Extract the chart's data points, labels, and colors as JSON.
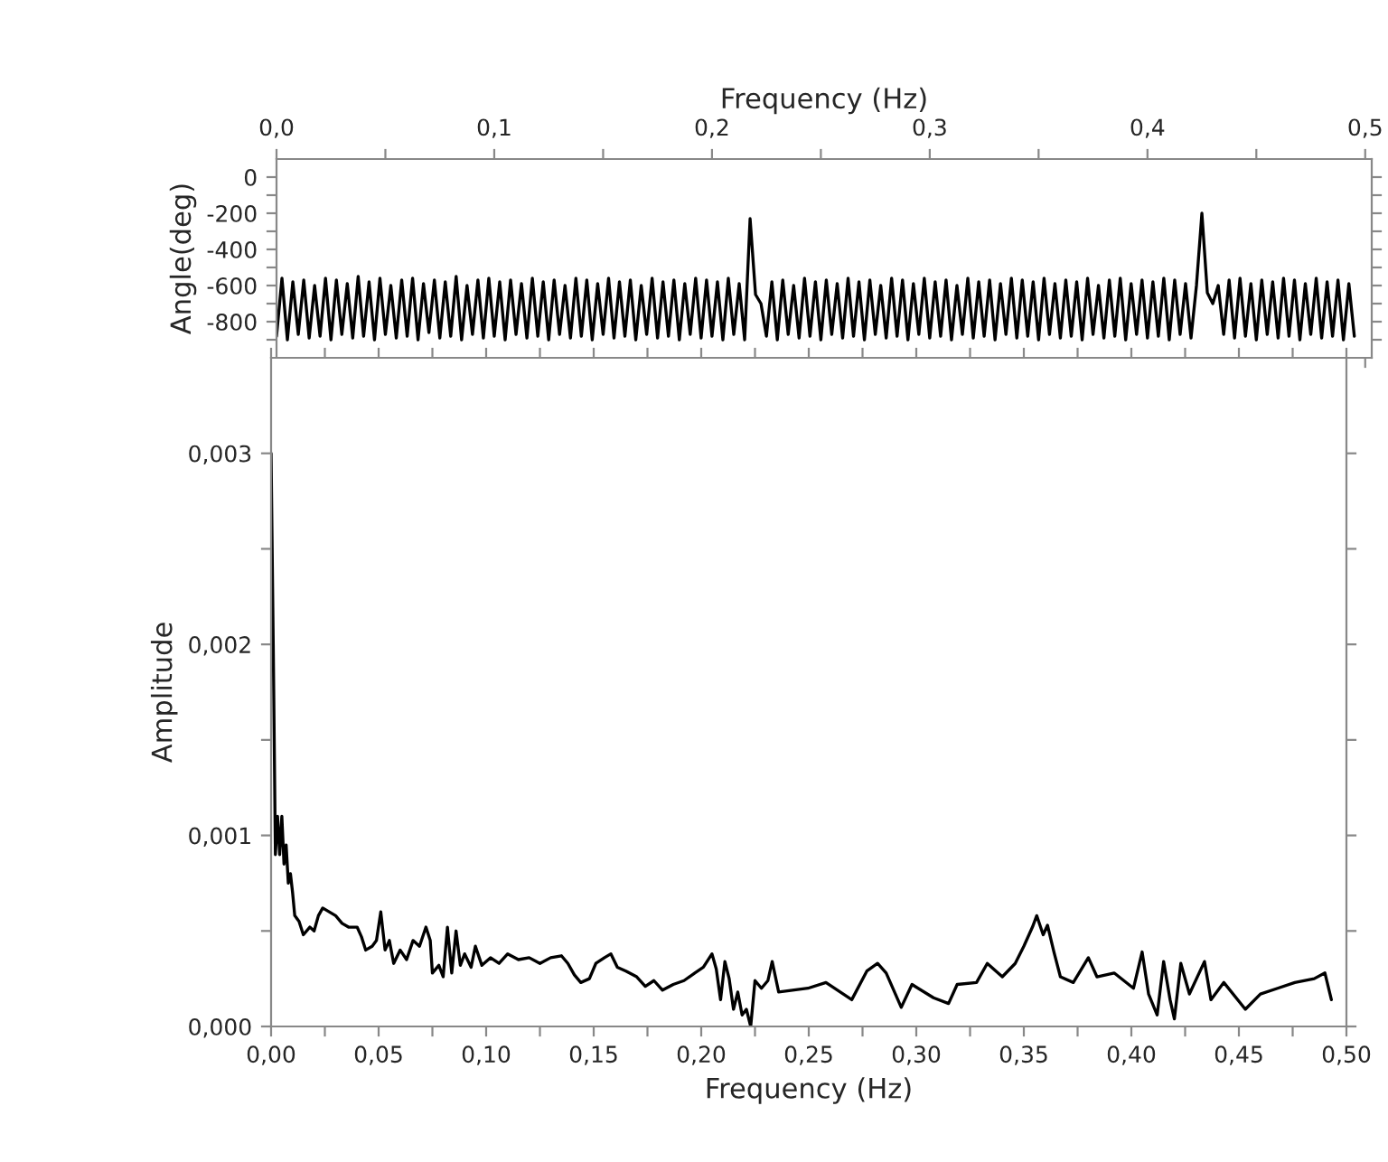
{
  "chart_data": [
    {
      "type": "line",
      "xlabel": "Frequency (Hz)",
      "ylabel": "Angle(deg)",
      "xlim": [
        0,
        0.503
      ],
      "ylim": [
        -1000,
        100
      ],
      "xticks": [
        {
          "value": 0,
          "label": "0,0"
        },
        {
          "value": 0.05,
          "label": null
        },
        {
          "value": 0.1,
          "label": "0,1"
        },
        {
          "value": 0.15,
          "label": null
        },
        {
          "value": 0.2,
          "label": "0,2"
        },
        {
          "value": 0.25,
          "label": null
        },
        {
          "value": 0.3,
          "label": "0,3"
        },
        {
          "value": 0.35,
          "label": null
        },
        {
          "value": 0.4,
          "label": "0,4"
        },
        {
          "value": 0.45,
          "label": null
        },
        {
          "value": 0.5,
          "label": "0,5"
        }
      ],
      "yticks": [
        0,
        {
          "value": -100,
          "label": null
        },
        -200,
        {
          "value": -300,
          "label": null
        },
        -400,
        {
          "value": -500,
          "label": null
        },
        -600,
        {
          "value": -700,
          "label": null
        },
        -800,
        {
          "value": -900,
          "label": null
        }
      ],
      "grid": false,
      "marker": "none",
      "line_style": "solid",
      "series": [
        {
          "color": "#000000",
          "x": [
            0,
            0.0025,
            0.005,
            0.0075,
            0.01,
            0.0125,
            0.015,
            0.0175,
            0.02,
            0.0225,
            0.025,
            0.0275,
            0.03,
            0.0325,
            0.035,
            0.0375,
            0.04,
            0.0425,
            0.045,
            0.0475,
            0.05,
            0.0525,
            0.055,
            0.0575,
            0.06,
            0.0625,
            0.065,
            0.0675,
            0.07,
            0.0725,
            0.075,
            0.0775,
            0.08,
            0.0825,
            0.085,
            0.0875,
            0.09,
            0.0925,
            0.095,
            0.0975,
            0.1,
            0.1025,
            0.105,
            0.1075,
            0.11,
            0.1125,
            0.115,
            0.1175,
            0.12,
            0.1225,
            0.125,
            0.1275,
            0.13,
            0.1325,
            0.135,
            0.1375,
            0.14,
            0.1425,
            0.145,
            0.1475,
            0.15,
            0.1525,
            0.155,
            0.1575,
            0.16,
            0.1625,
            0.165,
            0.1675,
            0.17,
            0.1725,
            0.175,
            0.1775,
            0.18,
            0.1825,
            0.185,
            0.1875,
            0.19,
            0.1925,
            0.195,
            0.1975,
            0.2,
            0.2025,
            0.205,
            0.2075,
            0.21,
            0.2125,
            0.215,
            0.2175,
            0.22,
            0.2225,
            0.225,
            0.2275,
            0.23,
            0.2325,
            0.235,
            0.2375,
            0.24,
            0.2425,
            0.245,
            0.2475,
            0.25,
            0.2525,
            0.255,
            0.2575,
            0.26,
            0.2625,
            0.265,
            0.2675,
            0.27,
            0.2725,
            0.275,
            0.2775,
            0.28,
            0.2825,
            0.285,
            0.2875,
            0.29,
            0.2925,
            0.295,
            0.2975,
            0.3,
            0.3025,
            0.305,
            0.3075,
            0.31,
            0.3125,
            0.315,
            0.3175,
            0.32,
            0.3225,
            0.325,
            0.3275,
            0.33,
            0.3325,
            0.335,
            0.3375,
            0.34,
            0.3425,
            0.345,
            0.3475,
            0.35,
            0.3525,
            0.355,
            0.3575,
            0.36,
            0.3625,
            0.365,
            0.3675,
            0.37,
            0.3725,
            0.375,
            0.3775,
            0.38,
            0.3825,
            0.385,
            0.3875,
            0.39,
            0.3925,
            0.395,
            0.3975,
            0.4,
            0.4025,
            0.405,
            0.4075,
            0.41,
            0.4125,
            0.415,
            0.4175,
            0.42,
            0.4225,
            0.425,
            0.4275,
            0.43,
            0.4325,
            0.435,
            0.4375,
            0.44,
            0.4425,
            0.445,
            0.4475,
            0.45,
            0.4525,
            0.455,
            0.4575,
            0.46,
            0.4625,
            0.465,
            0.4675,
            0.47,
            0.4725,
            0.475,
            0.4775,
            0.48,
            0.4825,
            0.485,
            0.4875,
            0.49,
            0.4925,
            0.495
          ],
          "values": [
            -880,
            -560,
            -900,
            -580,
            -870,
            -570,
            -890,
            -600,
            -880,
            -560,
            -900,
            -570,
            -870,
            -590,
            -890,
            -550,
            -880,
            -580,
            -900,
            -560,
            -870,
            -600,
            -890,
            -570,
            -880,
            -560,
            -900,
            -590,
            -860,
            -570,
            -890,
            -580,
            -880,
            -550,
            -900,
            -600,
            -870,
            -570,
            -890,
            -560,
            -880,
            -580,
            -900,
            -570,
            -870,
            -590,
            -890,
            -560,
            -880,
            -580,
            -900,
            -570,
            -870,
            -600,
            -890,
            -560,
            -880,
            -570,
            -900,
            -590,
            -870,
            -560,
            -890,
            -580,
            -880,
            -570,
            -900,
            -600,
            -870,
            -560,
            -890,
            -580,
            -880,
            -570,
            -900,
            -590,
            -870,
            -560,
            -890,
            -570,
            -880,
            -580,
            -900,
            -560,
            -870,
            -590,
            -900,
            -230,
            -650,
            -700,
            -880,
            -580,
            -900,
            -570,
            -870,
            -600,
            -890,
            -560,
            -880,
            -580,
            -900,
            -570,
            -870,
            -590,
            -890,
            -560,
            -880,
            -580,
            -900,
            -570,
            -870,
            -600,
            -890,
            -560,
            -880,
            -570,
            -900,
            -590,
            -870,
            -560,
            -890,
            -580,
            -880,
            -570,
            -900,
            -600,
            -870,
            -560,
            -890,
            -580,
            -880,
            -570,
            -900,
            -590,
            -870,
            -560,
            -890,
            -570,
            -880,
            -580,
            -900,
            -560,
            -870,
            -590,
            -890,
            -570,
            -880,
            -580,
            -900,
            -560,
            -870,
            -600,
            -890,
            -570,
            -880,
            -560,
            -900,
            -590,
            -870,
            -570,
            -890,
            -580,
            -880,
            -560,
            -900,
            -570,
            -870,
            -590,
            -890,
            -600,
            -200,
            -640,
            -700,
            -600,
            -870,
            -570,
            -890,
            -560,
            -880,
            -590,
            -900,
            -570,
            -870,
            -580,
            -890,
            -560,
            -880,
            -570,
            -900,
            -590,
            -870,
            -560,
            -890,
            -580,
            -880,
            -570,
            -900,
            -590,
            -880
          ]
        }
      ]
    },
    {
      "type": "line",
      "xlabel": "Frequency (Hz)",
      "ylabel": "Amplitude",
      "xlim": [
        0,
        0.5
      ],
      "ylim": [
        0,
        0.0035
      ],
      "xticks": [
        {
          "value": 0,
          "label": "0,00"
        },
        {
          "value": 0.025,
          "label": null
        },
        {
          "value": 0.05,
          "label": "0,05"
        },
        {
          "value": 0.075,
          "label": null
        },
        {
          "value": 0.1,
          "label": "0,10"
        },
        {
          "value": 0.125,
          "label": null
        },
        {
          "value": 0.15,
          "label": "0,15"
        },
        {
          "value": 0.175,
          "label": null
        },
        {
          "value": 0.2,
          "label": "0,20"
        },
        {
          "value": 0.225,
          "label": null
        },
        {
          "value": 0.25,
          "label": "0,25"
        },
        {
          "value": 0.275,
          "label": null
        },
        {
          "value": 0.3,
          "label": "0,30"
        },
        {
          "value": 0.325,
          "label": null
        },
        {
          "value": 0.35,
          "label": "0,35"
        },
        {
          "value": 0.375,
          "label": null
        },
        {
          "value": 0.4,
          "label": "0,40"
        },
        {
          "value": 0.425,
          "label": null
        },
        {
          "value": 0.45,
          "label": "0,45"
        },
        {
          "value": 0.475,
          "label": null
        },
        {
          "value": 0.5,
          "label": "0,50"
        }
      ],
      "yticks": [
        {
          "value": 0,
          "label": "0,000"
        },
        {
          "value": 0.0005,
          "label": null
        },
        {
          "value": 0.001,
          "label": "0,001"
        },
        {
          "value": 0.0015,
          "label": null
        },
        {
          "value": 0.002,
          "label": "0,002"
        },
        {
          "value": 0.0025,
          "label": null
        },
        {
          "value": 0.003,
          "label": "0,003"
        }
      ],
      "grid": false,
      "marker": "none",
      "line_style": "solid",
      "series": [
        {
          "color": "#000000",
          "x": [
            0,
            0.001,
            0.002,
            0.003,
            0.004,
            0.005,
            0.006,
            0.007,
            0.008,
            0.009,
            0.01,
            0.011,
            0.013,
            0.015,
            0.018,
            0.02,
            0.022,
            0.024,
            0.027,
            0.03,
            0.033,
            0.036,
            0.04,
            0.042,
            0.044,
            0.047,
            0.049,
            0.051,
            0.053,
            0.055,
            0.057,
            0.06,
            0.063,
            0.066,
            0.069,
            0.072,
            0.074,
            0.075,
            0.078,
            0.08,
            0.082,
            0.084,
            0.086,
            0.088,
            0.09,
            0.093,
            0.095,
            0.098,
            0.102,
            0.106,
            0.11,
            0.115,
            0.12,
            0.125,
            0.13,
            0.135,
            0.138,
            0.141,
            0.144,
            0.148,
            0.151,
            0.155,
            0.158,
            0.161,
            0.165,
            0.17,
            0.174,
            0.178,
            0.182,
            0.187,
            0.192,
            0.197,
            0.201,
            0.205,
            0.207,
            0.209,
            0.211,
            0.213,
            0.215,
            0.217,
            0.219,
            0.221,
            0.223,
            0.225,
            0.228,
            0.231,
            0.233,
            0.236,
            0.2496,
            0.258,
            0.27,
            0.277,
            0.282,
            0.286,
            0.293,
            0.298,
            0.308,
            0.315,
            0.319,
            0.328,
            0.333,
            0.34,
            0.346,
            0.35,
            0.354,
            0.356,
            0.359,
            0.361,
            0.364,
            0.367,
            0.373,
            0.38,
            0.384,
            0.392,
            0.401,
            0.405,
            0.408,
            0.412,
            0.415,
            0.418,
            0.42,
            0.423,
            0.427,
            0.434,
            0.437,
            0.443,
            0.453,
            0.46,
            0.468,
            0.476,
            0.485,
            0.49,
            0.493
          ],
          "values": [
            0.003,
            0.002,
            0.0009,
            0.0011,
            0.0009,
            0.0011,
            0.00085,
            0.00095,
            0.00075,
            0.0008,
            0.0007,
            0.00058,
            0.00055,
            0.00048,
            0.00052,
            0.0005,
            0.00058,
            0.00062,
            0.0006,
            0.00058,
            0.00054,
            0.00052,
            0.00052,
            0.00047,
            0.0004,
            0.00042,
            0.00045,
            0.0006,
            0.0004,
            0.00045,
            0.00033,
            0.0004,
            0.00035,
            0.00045,
            0.00042,
            0.00052,
            0.00045,
            0.00028,
            0.00032,
            0.00026,
            0.00052,
            0.00028,
            0.0005,
            0.00032,
            0.00038,
            0.00031,
            0.00042,
            0.00032,
            0.00036,
            0.00033,
            0.00038,
            0.00035,
            0.00036,
            0.00033,
            0.00036,
            0.00037,
            0.00033,
            0.00027,
            0.00023,
            0.00025,
            0.00033,
            0.00036,
            0.00038,
            0.00031,
            0.00029,
            0.00026,
            0.00021,
            0.00024,
            0.00019,
            0.00022,
            0.00024,
            0.00028,
            0.00031,
            0.00038,
            0.0003,
            0.00014,
            0.00034,
            0.00025,
            9e-05,
            0.00018,
            6e-05,
            9e-05,
            0,
            0.00024,
            0.0002,
            0.00024,
            0.00034,
            0.00018,
            0.0002,
            0.00023,
            0.00014,
            0.00029,
            0.00033,
            0.00028,
            0.0001,
            0.00022,
            0.00015,
            0.00012,
            0.00022,
            0.00023,
            0.00033,
            0.00026,
            0.00033,
            0.00042,
            0.00052,
            0.00058,
            0.00048,
            0.00053,
            0.00039,
            0.00026,
            0.00023,
            0.00036,
            0.00026,
            0.00028,
            0.0002,
            0.00039,
            0.00017,
            6e-05,
            0.00034,
            0.00014,
            4e-05,
            0.00033,
            0.00017,
            0.00034,
            0.00014,
            0.00023,
            9e-05,
            0.00017,
            0.0002,
            0.00023,
            0.00025,
            0.00028,
            0.00014
          ]
        }
      ]
    }
  ]
}
